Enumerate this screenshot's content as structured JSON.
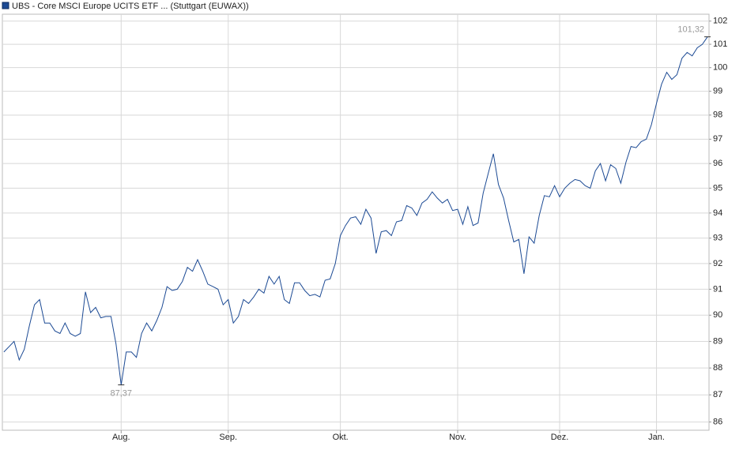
{
  "chart_data": {
    "type": "line",
    "title": "UBS - Core MSCI Europe UCITS ETF ... (Stuttgart (EUWAX))",
    "color": "#1c4a94",
    "log_scale": true,
    "grid": true,
    "values": [
      88.6,
      88.8,
      89.0,
      88.3,
      88.7,
      89.6,
      90.4,
      90.6,
      89.7,
      89.7,
      89.4,
      89.3,
      89.7,
      89.3,
      89.2,
      89.3,
      90.9,
      90.1,
      90.3,
      89.9,
      89.95,
      89.95,
      88.9,
      87.37,
      88.6,
      88.6,
      88.4,
      89.3,
      89.7,
      89.4,
      89.8,
      90.3,
      91.1,
      90.95,
      91.0,
      91.3,
      91.85,
      91.7,
      92.15,
      91.7,
      91.2,
      91.1,
      91.0,
      90.4,
      90.6,
      89.7,
      89.95,
      90.6,
      90.45,
      90.7,
      91.0,
      90.85,
      91.5,
      91.2,
      91.5,
      90.6,
      90.45,
      91.25,
      91.25,
      90.95,
      90.75,
      90.8,
      90.7,
      91.35,
      91.4,
      92.0,
      93.1,
      93.5,
      93.8,
      93.85,
      93.55,
      94.15,
      93.8,
      92.4,
      93.25,
      93.3,
      93.1,
      93.65,
      93.7,
      94.3,
      94.2,
      93.9,
      94.4,
      94.55,
      94.85,
      94.6,
      94.4,
      94.55,
      94.1,
      94.15,
      93.55,
      94.25,
      93.5,
      93.6,
      94.8,
      95.6,
      96.4,
      95.15,
      94.6,
      93.7,
      92.85,
      92.95,
      91.6,
      93.05,
      92.8,
      93.9,
      94.7,
      94.65,
      95.1,
      94.65,
      95.0,
      95.2,
      95.35,
      95.3,
      95.1,
      95.0,
      95.7,
      96.0,
      95.3,
      95.95,
      95.8,
      95.2,
      96.05,
      96.7,
      96.65,
      96.9,
      97.0,
      97.6,
      98.5,
      99.3,
      99.8,
      99.5,
      99.7,
      100.4,
      100.65,
      100.5,
      100.85,
      101.0,
      101.32
    ],
    "value_labels": [
      null,
      null,
      null,
      null,
      null,
      null,
      null,
      null,
      null,
      null,
      null,
      null,
      null,
      null,
      null,
      null,
      null,
      null,
      null,
      null,
      null,
      null,
      null,
      "87,37",
      null,
      null,
      null,
      null,
      null,
      null,
      null,
      null,
      null,
      null,
      null,
      null,
      null,
      null,
      null,
      null,
      null,
      null,
      null,
      null,
      null,
      null,
      null,
      null,
      null,
      null,
      null,
      null,
      null,
      null,
      null,
      null,
      null,
      null,
      null,
      null,
      null,
      null,
      null,
      null,
      null,
      null,
      null,
      null,
      null,
      null,
      null,
      null,
      null,
      null,
      null,
      null,
      null,
      null,
      null,
      null,
      null,
      null,
      null,
      null,
      null,
      null,
      null,
      null,
      null,
      null,
      null,
      null,
      null,
      null,
      null,
      null,
      null,
      null,
      null,
      null,
      null,
      null,
      null,
      null,
      null,
      null,
      null,
      null,
      null,
      null,
      null,
      null,
      null,
      null,
      null,
      null,
      null,
      null,
      null,
      null,
      null,
      null,
      null,
      null,
      null,
      null,
      null,
      null,
      null,
      null,
      null,
      null,
      null,
      null,
      null,
      null,
      null,
      null,
      "101,32"
    ],
    "xlim": [
      -0.3,
      138.3
    ],
    "xticks": [
      {
        "value": 23,
        "label": "Aug."
      },
      {
        "value": 44,
        "label": "Sep."
      },
      {
        "value": 66,
        "label": "Okt."
      },
      {
        "value": 89,
        "label": "Nov."
      },
      {
        "value": 109,
        "label": "Dez."
      },
      {
        "value": 128,
        "label": "Jan."
      }
    ],
    "ylim": [
      85.7,
      102.3
    ],
    "yticks": [
      86,
      87,
      88,
      89,
      90,
      91,
      92,
      93,
      94,
      95,
      96,
      97,
      98,
      99,
      100,
      101,
      102
    ]
  }
}
